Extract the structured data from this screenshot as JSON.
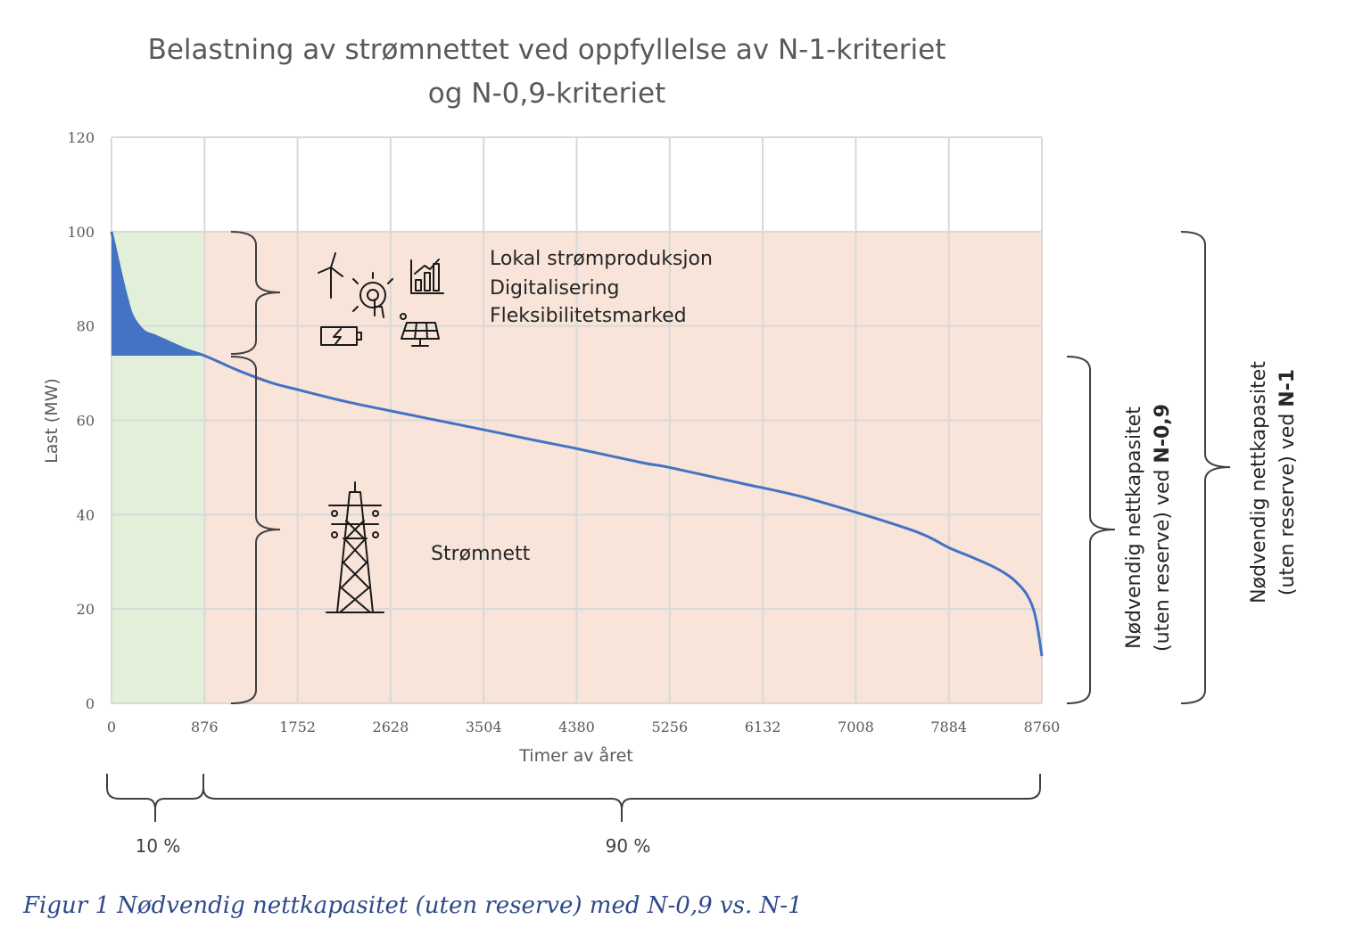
{
  "chart_data": {
    "type": "area",
    "title_line1": "Belastning av strømnettet ved oppfyllelse av N-1-kriteriet",
    "title_line2": "og N-0,9-kriteriet",
    "xlabel": "Timer av året",
    "ylabel": "Last (MW)",
    "xlim": [
      0,
      8760
    ],
    "ylim": [
      0,
      120
    ],
    "x_ticks": [
      "0",
      "876",
      "1752",
      "2628",
      "3504",
      "4380",
      "5256",
      "6132",
      "7008",
      "7884",
      "8760"
    ],
    "y_ticks": [
      "0",
      "20",
      "40",
      "60",
      "80",
      "100",
      "120"
    ],
    "grid": true,
    "series": [
      {
        "x": [
          0,
          50,
          100,
          150,
          200,
          300,
          400,
          500,
          600,
          700,
          800,
          876,
          1000,
          1200,
          1500,
          1752,
          2200,
          2628,
          3000,
          3504,
          4000,
          4380,
          5000,
          5256,
          6000,
          6132,
          6500,
          7008,
          7500,
          7700,
          7884,
          8100,
          8300,
          8450,
          8550,
          8620,
          8680,
          8720,
          8760
        ],
        "y": [
          100,
          95,
          90,
          85.5,
          82,
          79,
          78,
          77,
          76,
          75,
          74.3,
          73.7,
          72.5,
          70.5,
          68,
          66.5,
          64,
          62,
          60.3,
          58,
          55.7,
          54,
          51,
          50,
          46.3,
          45.7,
          43.8,
          40.5,
          37,
          35.2,
          33,
          31,
          29,
          27,
          25,
          23,
          20,
          16,
          10
        ]
      }
    ],
    "shaded_regions": [
      {
        "x_range": [
          0,
          876
        ],
        "y_range": [
          0,
          100
        ],
        "color": "#e2efd9"
      },
      {
        "x_range": [
          876,
          8760
        ],
        "y_range": [
          0,
          100
        ],
        "color": "#f8e4d8"
      }
    ],
    "peak_fill": {
      "y_base": 73.7,
      "x_end": 876,
      "color": "#4472c4"
    },
    "line_color": "#4472c4",
    "annotations": {
      "upper": [
        "Lokal strømproduksjon",
        "Digitalisering",
        "Fleksibilitetsmarked"
      ],
      "lower": "Strømnett"
    },
    "side_labels": {
      "n09_line1": "Nødvendig nettkapasitet",
      "n09_line2_prefix": "(uten reserve) ved ",
      "n09_line2_bold": "N-0,9",
      "n1_line1": "Nødvendig nettkapasitet",
      "n1_line2_prefix": "(uten reserve) ved ",
      "n1_line2_bold": "N-1"
    },
    "percent_labels": [
      "10 %",
      "90 %"
    ]
  },
  "caption": "Figur 1 Nødvendig nettkapasitet (uten reserve) med N-0,9 vs. N-1"
}
